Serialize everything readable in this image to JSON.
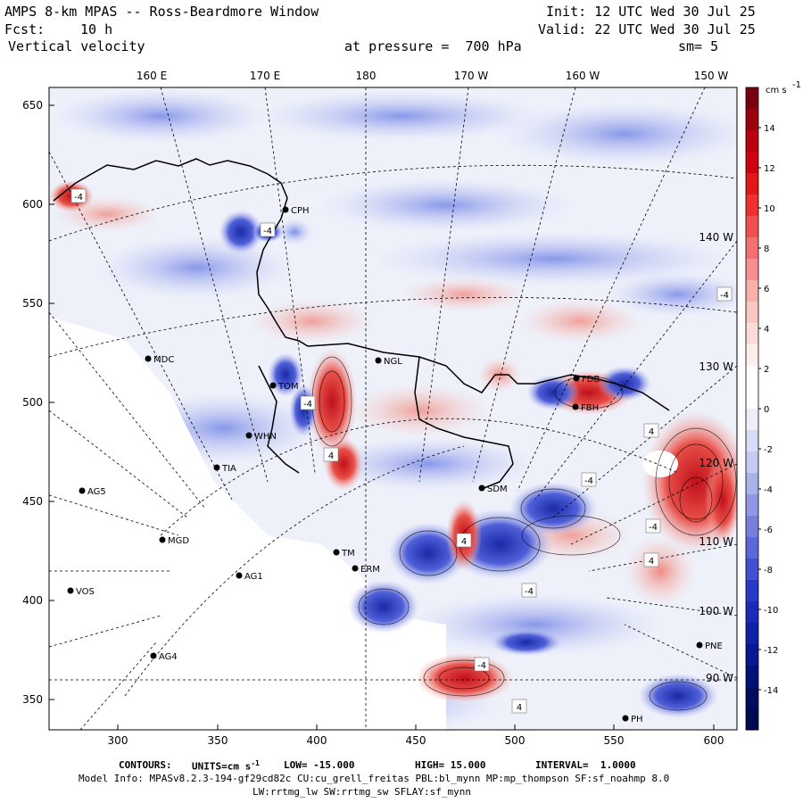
{
  "header": {
    "title": "AMPS 8-km MPAS -- Ross-Beardmore Window",
    "init": "Init: 12 UTC Wed 30 Jul 25",
    "fcst_label": "Fcst:",
    "fcst_value": "10 h",
    "valid": "Valid: 22 UTC Wed 30 Jul 25",
    "field": "Vertical velocity",
    "pressure": "at pressure =  700 hPa",
    "smooth": "sm= 5"
  },
  "map": {
    "x_ticks": [
      "300",
      "350",
      "400",
      "450",
      "500",
      "550",
      "600"
    ],
    "y_ticks": [
      "650",
      "600",
      "550",
      "500",
      "450",
      "400",
      "350"
    ],
    "lon_labels": [
      "160 E",
      "170 E",
      "180",
      "170 W",
      "160 W",
      "150 W"
    ],
    "right_lon_labels": [
      "140 W",
      "130 W",
      "120 W",
      "110 W",
      "100 W",
      "90 W"
    ],
    "stations": [
      {
        "name": "CPH"
      },
      {
        "name": "MDC"
      },
      {
        "name": "NGL"
      },
      {
        "name": "TOM"
      },
      {
        "name": "WHN"
      },
      {
        "name": "TIA"
      },
      {
        "name": "AG5"
      },
      {
        "name": "MGD"
      },
      {
        "name": "AG1"
      },
      {
        "name": "VOS"
      },
      {
        "name": "AG4"
      },
      {
        "name": "SDM"
      },
      {
        "name": "ERM"
      },
      {
        "name": "TM"
      },
      {
        "name": "FDB"
      },
      {
        "name": "FBH"
      },
      {
        "name": "PNE"
      },
      {
        "name": "PH"
      }
    ],
    "contour_labels": [
      "-4",
      "4"
    ]
  },
  "colorbar": {
    "units": "cm s",
    "units_exp": "-1",
    "ticks": [
      "14",
      "12",
      "10",
      "8",
      "6",
      "4",
      "2",
      "0",
      "-2",
      "-4",
      "-6",
      "-8",
      "-10",
      "-12",
      "-14"
    ]
  },
  "footer": {
    "contours_label": "CONTOURS:",
    "units_label": "UNITS=cm s",
    "units_exp": "-1",
    "low": "LOW= -15.000",
    "high": "HIGH= 15.000",
    "interval": "INTERVAL=  1.0000",
    "model_info": "Model Info: MPASv8.2.3-194-gf29cd82c CU:cu_grell_freitas PBL:bl_mynn MP:mp_thompson SF:sf_noahmp 8.0",
    "model_info2": "LW:rrtmg_lw SW:rrtmg_sw SFLAY:sf_mynn"
  }
}
